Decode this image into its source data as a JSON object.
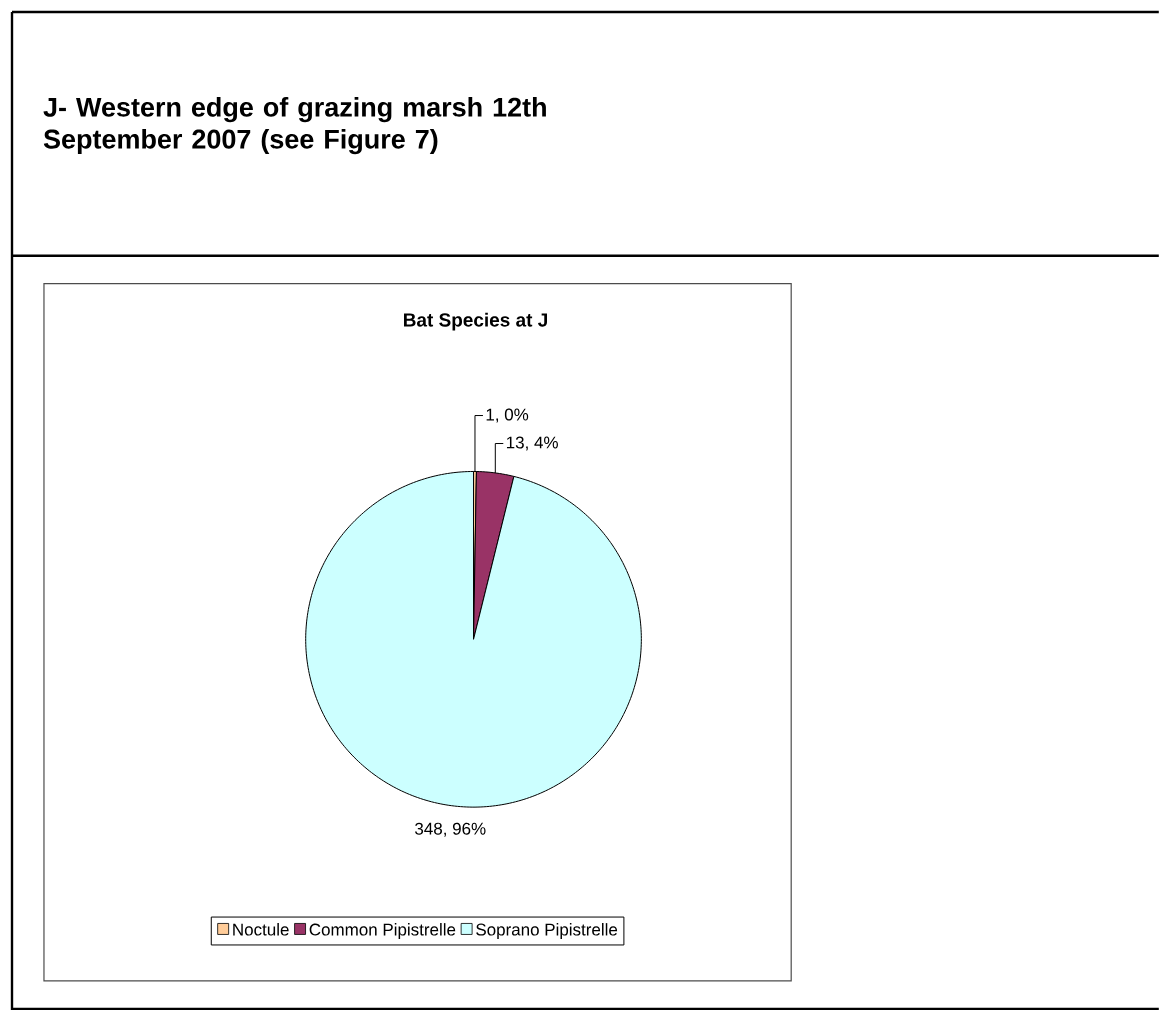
{
  "chart_data": {
    "type": "pie",
    "title": "J- Western edge of grazing marsh 12th September 2007 (see Figure 7)",
    "subtitle": "Bat Species at J",
    "categories": [
      "Noctule",
      "Common Pipistrelle",
      "Soprano Pipistrelle"
    ],
    "values": [
      1,
      13,
      348
    ],
    "colors": [
      "#ffcc99",
      "#993366",
      "#ccffff"
    ],
    "value_labels": [
      "1, 0%",
      "13, 4%",
      "348, 96%"
    ],
    "legend": "bottom"
  }
}
